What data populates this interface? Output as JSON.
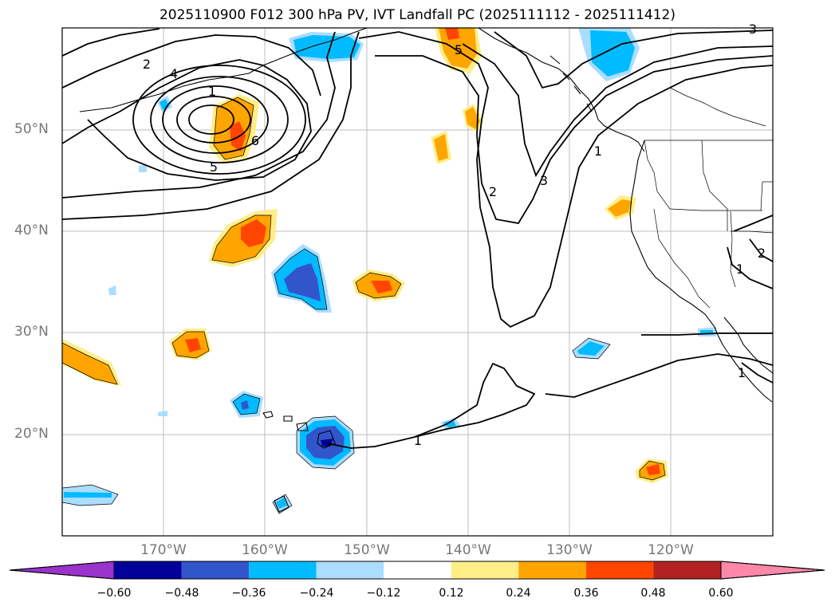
{
  "title": "2025110900 F012 300 hPa PV, IVT Landfall PC (2025111112 - 2025111412)",
  "latitude_labels": [
    "50°N",
    "40°N",
    "30°N",
    "20°N"
  ],
  "longitude_labels": [
    "170°W",
    "160°W",
    "150°W",
    "140°W",
    "130°W",
    "120°W"
  ],
  "contour_labels": [
    "2",
    "4",
    "1",
    "5",
    "6",
    "5",
    "2",
    "3",
    "1",
    "1",
    "1",
    "1",
    "2",
    "3"
  ],
  "colorbar": {
    "ticks": [
      "−0.60",
      "−0.48",
      "−0.36",
      "−0.24",
      "−0.12",
      "0.12",
      "0.24",
      "0.36",
      "0.48",
      "0.60"
    ],
    "colors": [
      "#9933cc",
      "#000099",
      "#3355cc",
      "#00bbff",
      "#aaddff",
      "#ffffff",
      "#ffee88",
      "#ffa500",
      "#ff4500",
      "#b22222",
      "#ff88aa"
    ]
  }
}
